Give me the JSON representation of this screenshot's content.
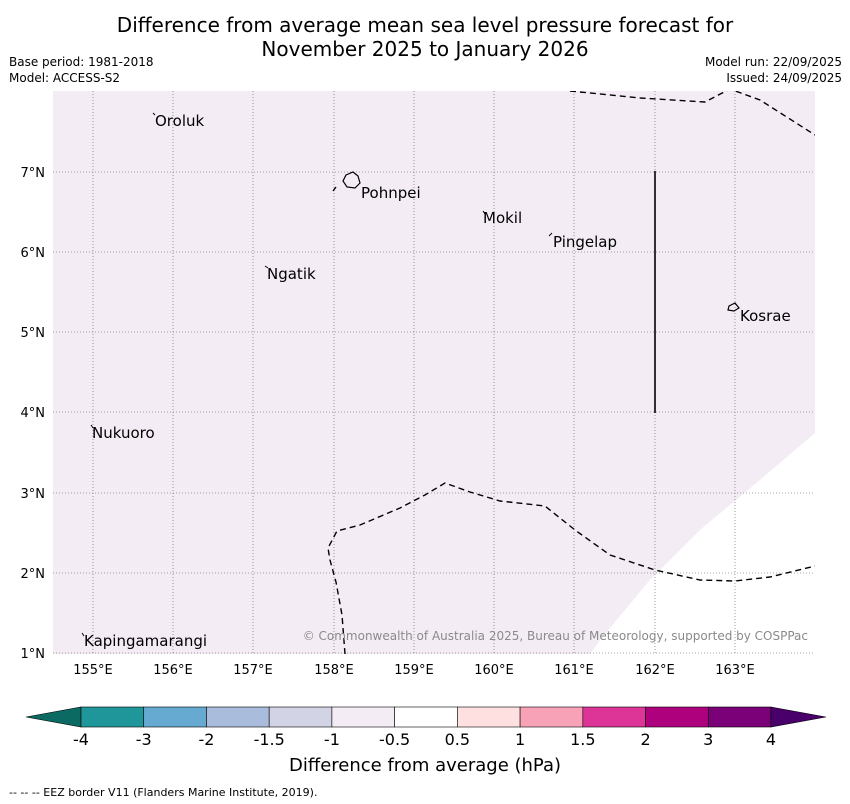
{
  "title": {
    "line1": "Difference from average mean sea level pressure forecast for",
    "line2": "November 2025 to January 2026"
  },
  "meta": {
    "base_period": "Base period: 1981-2018",
    "model": "Model: ACCESS-S2",
    "model_run": "Model run: 22/09/2025",
    "issued": "Issued: 24/09/2025"
  },
  "map": {
    "lon_labels": [
      "155°E",
      "156°E",
      "157°E",
      "158°E",
      "159°E",
      "160°E",
      "161°E",
      "162°E",
      "163°E"
    ],
    "lat_labels": [
      "7°N",
      "6°N",
      "5°N",
      "4°N",
      "3°N",
      "2°N",
      "1°N"
    ],
    "places": [
      "Oroluk",
      "Pohnpei",
      "Mokil",
      "Pingelap",
      "Ngatik",
      "Kosrae",
      "Nukuoro",
      "Kapingamarangi"
    ],
    "copyright": "© Commonwealth of Australia 2025, Bureau of Meteorology, supported by COSPPac",
    "field_colors": {
      "light_purple": "#f4ecf5",
      "white": "#ffffff"
    }
  },
  "colorbar": {
    "colors": [
      "#0b6b62",
      "#1f9699",
      "#66a9d1",
      "#a9bcdc",
      "#d3d3e6",
      "#f4ecf5",
      "#ffffff",
      "#fde0df",
      "#f8a2b8",
      "#dd3497",
      "#ae017e",
      "#7a0177",
      "#49006a"
    ],
    "tick_labels": [
      "-4",
      "-3",
      "-2",
      "-1.5",
      "-1",
      "-0.5",
      "0.5",
      "1",
      "1.5",
      "2",
      "3",
      "4"
    ],
    "label": "Difference from average (hPa)"
  },
  "footnote": "--  --  -- EEZ border V11 (Flanders Marine Institute, 2019)."
}
